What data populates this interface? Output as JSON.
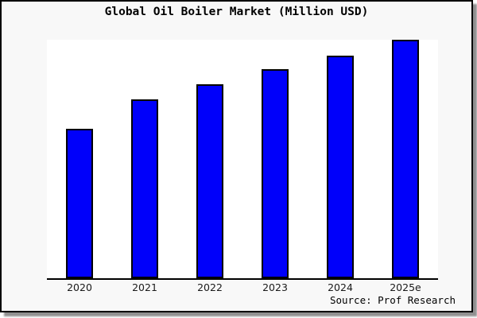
{
  "title": "Global Oil Boiler Market (Million USD)",
  "source_note": "Source: Prof Research",
  "colors": {
    "bar_fill": "#0000fa",
    "bar_border": "#000000",
    "canvas_bg": "#f8f8f8",
    "plot_bg": "#ffffff",
    "axis": "#000000",
    "shadow": "#909090"
  },
  "chart_data": {
    "type": "bar",
    "title": "Global Oil Boiler Market (Million USD)",
    "categories": [
      "2020",
      "2021",
      "2022",
      "2023",
      "2024",
      "2025e"
    ],
    "values": [
      62.7,
      75.0,
      81.3,
      87.7,
      93.3,
      100
    ],
    "values_note": "relative bar heights, % of tallest bar (no y-axis scale or tick labels shown in chart)",
    "xlabel": "",
    "ylabel": "",
    "ylim": [
      0,
      100
    ],
    "y_axis_ticks": "none",
    "grid": false,
    "legend": false,
    "annotations": [
      "Source: Prof Research"
    ]
  }
}
